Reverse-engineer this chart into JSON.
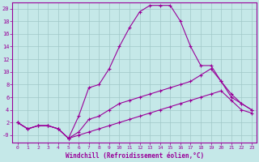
{
  "xlabel": "Windchill (Refroidissement éolien,°C)",
  "background_color": "#c5e8e8",
  "grid_color": "#a0c8c8",
  "line_color": "#990099",
  "xlim": [
    -0.5,
    23.5
  ],
  "ylim": [
    -1.2,
    21
  ],
  "xticks": [
    0,
    1,
    2,
    3,
    4,
    5,
    6,
    7,
    8,
    9,
    10,
    11,
    12,
    13,
    14,
    15,
    16,
    17,
    18,
    19,
    20,
    21,
    22,
    23
  ],
  "yticks": [
    0,
    2,
    4,
    6,
    8,
    10,
    12,
    14,
    16,
    18,
    20
  ],
  "ytick_labels": [
    "-0",
    "2",
    "4",
    "6",
    "8",
    "10",
    "12",
    "14",
    "16",
    "18",
    "20"
  ],
  "line1_x": [
    0,
    1,
    2,
    3,
    4,
    5,
    6,
    7,
    8,
    9,
    10,
    11,
    12,
    13,
    14,
    15,
    16,
    17,
    18,
    19,
    20,
    21,
    22,
    23
  ],
  "line1_y": [
    2.0,
    1.0,
    1.5,
    1.5,
    1.0,
    -0.5,
    3.0,
    7.5,
    8.0,
    10.5,
    14.0,
    17.0,
    19.5,
    20.5,
    20.5,
    20.5,
    18.0,
    14.0,
    11.0,
    11.0,
    8.5,
    6.0,
    5.0,
    4.0
  ],
  "line2_x": [
    0,
    1,
    2,
    3,
    4,
    5,
    6,
    7,
    8,
    9,
    10,
    11,
    12,
    13,
    14,
    15,
    16,
    17,
    18,
    19,
    20,
    21,
    22,
    23
  ],
  "line2_y": [
    2.0,
    1.0,
    1.5,
    1.5,
    1.0,
    -0.5,
    0.5,
    2.5,
    3.0,
    4.0,
    5.0,
    5.5,
    6.0,
    6.5,
    7.0,
    7.5,
    8.0,
    8.5,
    9.5,
    10.5,
    8.5,
    6.5,
    5.0,
    4.0
  ],
  "line3_x": [
    0,
    1,
    2,
    3,
    4,
    5,
    6,
    7,
    8,
    9,
    10,
    11,
    12,
    13,
    14,
    15,
    16,
    17,
    18,
    19,
    20,
    21,
    22,
    23
  ],
  "line3_y": [
    2.0,
    1.0,
    1.5,
    1.5,
    1.0,
    -0.5,
    0.0,
    0.5,
    1.0,
    1.5,
    2.0,
    2.5,
    3.0,
    3.5,
    4.0,
    4.5,
    5.0,
    5.5,
    6.0,
    6.5,
    7.0,
    5.5,
    4.0,
    3.5
  ]
}
